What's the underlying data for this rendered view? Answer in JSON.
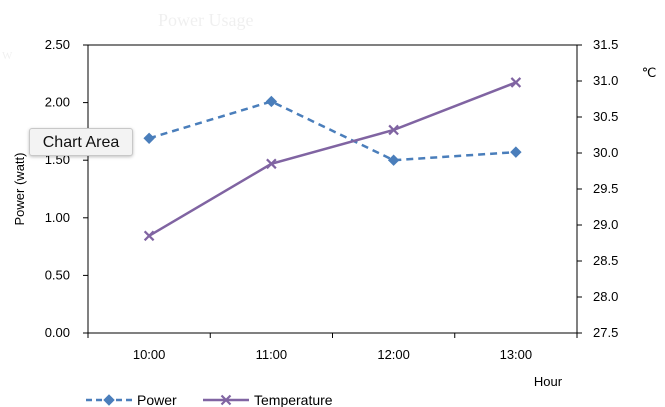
{
  "chart_data": {
    "type": "line",
    "title": "",
    "categories": [
      "10:00",
      "11:00",
      "12:00",
      "13:00"
    ],
    "xlabel": "Hour",
    "ylabel": "Power (watt)",
    "y2label": "℃",
    "ylim": [
      0,
      2.5
    ],
    "yticks": [
      "0.00",
      "0.50",
      "1.00",
      "1.50",
      "2.00",
      "2.50"
    ],
    "y2lim": [
      27.5,
      31.5
    ],
    "y2ticks": [
      "27.5",
      "28.0",
      "28.5",
      "29.0",
      "29.5",
      "30.0",
      "30.5",
      "31.0",
      "31.5"
    ],
    "grid": false,
    "legend_position": "bottom",
    "series": [
      {
        "name": "Power",
        "axis": "left",
        "values": [
          1.69,
          2.01,
          1.5,
          1.57
        ],
        "color": "#4a7ebb",
        "line_style": "dashed",
        "marker": "diamond"
      },
      {
        "name": "Temperature",
        "axis": "right",
        "values": [
          28.85,
          29.85,
          30.32,
          30.98
        ],
        "color": "#8064a2",
        "line_style": "solid",
        "marker": "x"
      }
    ]
  },
  "tooltip": {
    "label": "Chart Area"
  }
}
